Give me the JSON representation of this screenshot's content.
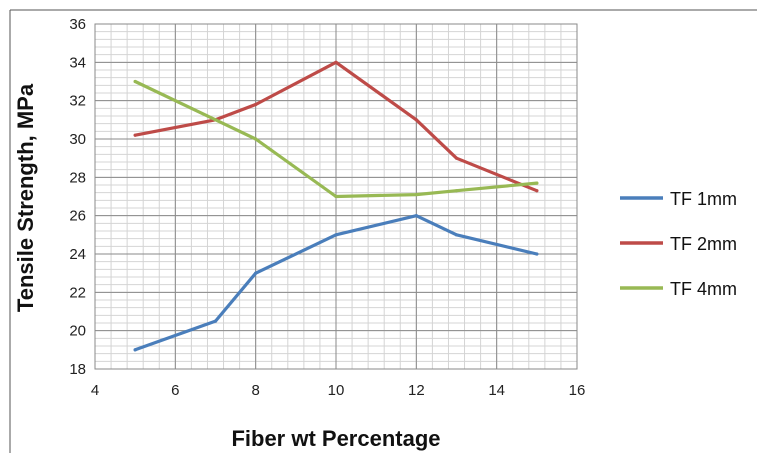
{
  "chart_data": {
    "type": "line",
    "title": "",
    "xlabel": "Fiber wt Percentage",
    "ylabel": "Tensile Strength, MPa",
    "xlim": [
      4,
      16
    ],
    "ylim": [
      18,
      36
    ],
    "x_ticks": [
      "4",
      "6",
      "8",
      "10",
      "12",
      "14",
      "16"
    ],
    "y_ticks": [
      "18",
      "20",
      "22",
      "24",
      "26",
      "28",
      "30",
      "32",
      "34",
      "36"
    ],
    "grid": true,
    "minor_grid": true,
    "legend_position": "right",
    "series": [
      {
        "name": "TF 1mm",
        "color": "#4a7ebb",
        "x": [
          5,
          7,
          8,
          10,
          12,
          13,
          15
        ],
        "y": [
          19,
          20.5,
          23,
          25,
          26,
          25,
          24
        ]
      },
      {
        "name": "TF 2mm",
        "color": "#be4b48",
        "x": [
          5,
          7,
          8,
          10,
          12,
          13,
          15
        ],
        "y": [
          30.2,
          31,
          31.8,
          34,
          31,
          29,
          27.3
        ]
      },
      {
        "name": "TF 4mm",
        "color": "#98b954",
        "x": [
          5,
          7,
          8,
          10,
          12,
          13,
          15
        ],
        "y": [
          33,
          31,
          30,
          27,
          27.1,
          27.3,
          27.7
        ]
      }
    ]
  }
}
